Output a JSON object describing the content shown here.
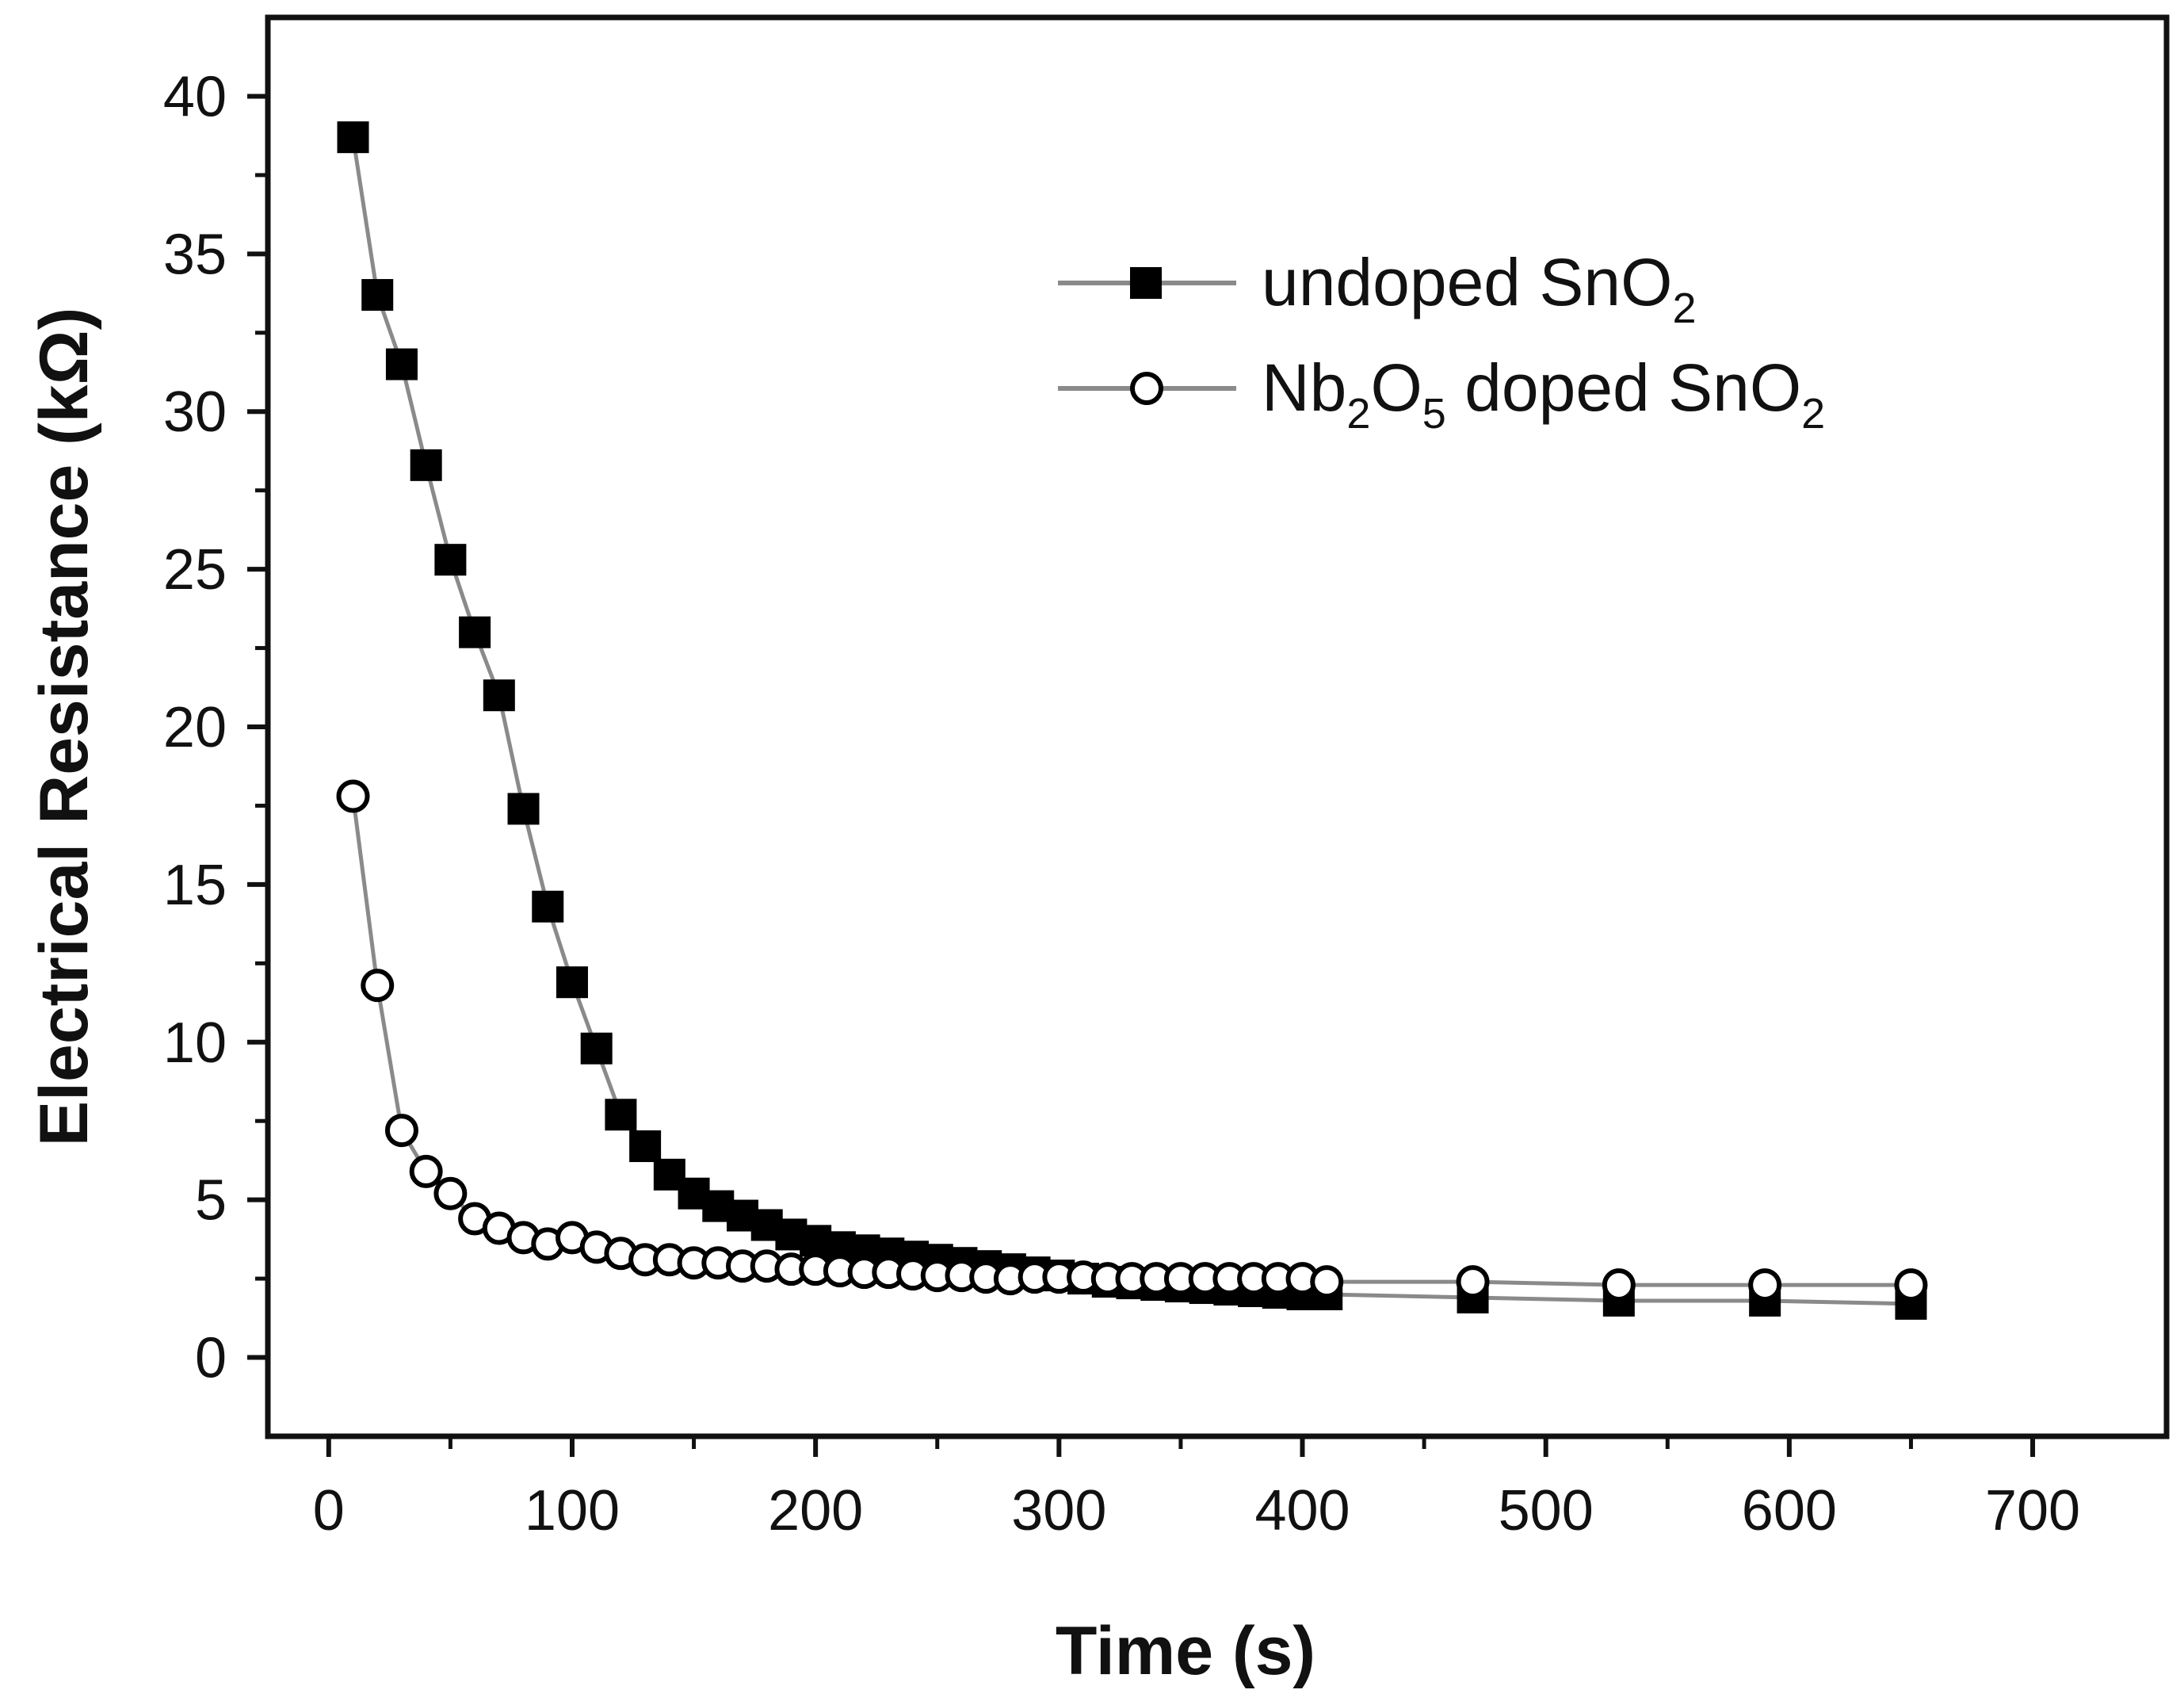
{
  "chart_data": {
    "type": "scatter",
    "title": "",
    "xlabel": "Time (s)",
    "ylabel": "Electrical Resistance (kΩ)",
    "xlim": [
      -25,
      755
    ],
    "ylim": [
      -2.5,
      42.5
    ],
    "x_ticks": [
      0,
      100,
      200,
      300,
      400,
      500,
      600,
      700
    ],
    "y_ticks": [
      0,
      5,
      10,
      15,
      20,
      25,
      30,
      35,
      40
    ],
    "grid": false,
    "legend_position": "top-right",
    "series": [
      {
        "name_parts": [
          "undoped SnO",
          "2"
        ],
        "marker": "filled-square",
        "color": "#000000",
        "line_color": "#8a8a8a",
        "points": [
          [
            10,
            38.7
          ],
          [
            20,
            33.7
          ],
          [
            30,
            31.5
          ],
          [
            40,
            28.3
          ],
          [
            50,
            25.3
          ],
          [
            60,
            23.0
          ],
          [
            70,
            21.0
          ],
          [
            80,
            17.4
          ],
          [
            90,
            14.3
          ],
          [
            100,
            11.9
          ],
          [
            110,
            9.8
          ],
          [
            120,
            7.7
          ],
          [
            130,
            6.7
          ],
          [
            140,
            5.8
          ],
          [
            150,
            5.2
          ],
          [
            160,
            4.8
          ],
          [
            170,
            4.5
          ],
          [
            180,
            4.2
          ],
          [
            190,
            3.9
          ],
          [
            200,
            3.7
          ],
          [
            210,
            3.5
          ],
          [
            220,
            3.4
          ],
          [
            230,
            3.3
          ],
          [
            240,
            3.2
          ],
          [
            250,
            3.1
          ],
          [
            260,
            3.0
          ],
          [
            270,
            2.9
          ],
          [
            280,
            2.8
          ],
          [
            290,
            2.7
          ],
          [
            300,
            2.6
          ],
          [
            310,
            2.5
          ],
          [
            320,
            2.4
          ],
          [
            330,
            2.35
          ],
          [
            340,
            2.3
          ],
          [
            350,
            2.25
          ],
          [
            360,
            2.2
          ],
          [
            370,
            2.15
          ],
          [
            380,
            2.1
          ],
          [
            390,
            2.05
          ],
          [
            400,
            2.0
          ],
          [
            410,
            2.0
          ],
          [
            470,
            1.9
          ],
          [
            530,
            1.8
          ],
          [
            590,
            1.8
          ],
          [
            650,
            1.7
          ]
        ]
      },
      {
        "name_parts": [
          "Nb",
          "2",
          "O",
          "5",
          " doped SnO",
          "2"
        ],
        "marker": "open-circle",
        "color": "#000000",
        "line_color": "#8a8a8a",
        "points": [
          [
            10,
            17.8
          ],
          [
            20,
            11.8
          ],
          [
            30,
            7.2
          ],
          [
            40,
            5.9
          ],
          [
            50,
            5.2
          ],
          [
            60,
            4.4
          ],
          [
            70,
            4.1
          ],
          [
            80,
            3.8
          ],
          [
            90,
            3.6
          ],
          [
            100,
            3.8
          ],
          [
            110,
            3.5
          ],
          [
            120,
            3.3
          ],
          [
            130,
            3.1
          ],
          [
            140,
            3.1
          ],
          [
            150,
            3.0
          ],
          [
            160,
            3.0
          ],
          [
            170,
            2.9
          ],
          [
            180,
            2.9
          ],
          [
            190,
            2.8
          ],
          [
            200,
            2.8
          ],
          [
            210,
            2.75
          ],
          [
            220,
            2.7
          ],
          [
            230,
            2.7
          ],
          [
            240,
            2.65
          ],
          [
            250,
            2.6
          ],
          [
            260,
            2.6
          ],
          [
            270,
            2.55
          ],
          [
            280,
            2.5
          ],
          [
            290,
            2.55
          ],
          [
            300,
            2.55
          ],
          [
            310,
            2.55
          ],
          [
            320,
            2.5
          ],
          [
            330,
            2.5
          ],
          [
            340,
            2.5
          ],
          [
            350,
            2.5
          ],
          [
            360,
            2.5
          ],
          [
            370,
            2.5
          ],
          [
            380,
            2.5
          ],
          [
            390,
            2.5
          ],
          [
            400,
            2.5
          ],
          [
            410,
            2.4
          ],
          [
            470,
            2.4
          ],
          [
            530,
            2.3
          ],
          [
            590,
            2.3
          ],
          [
            650,
            2.3
          ]
        ]
      }
    ]
  }
}
